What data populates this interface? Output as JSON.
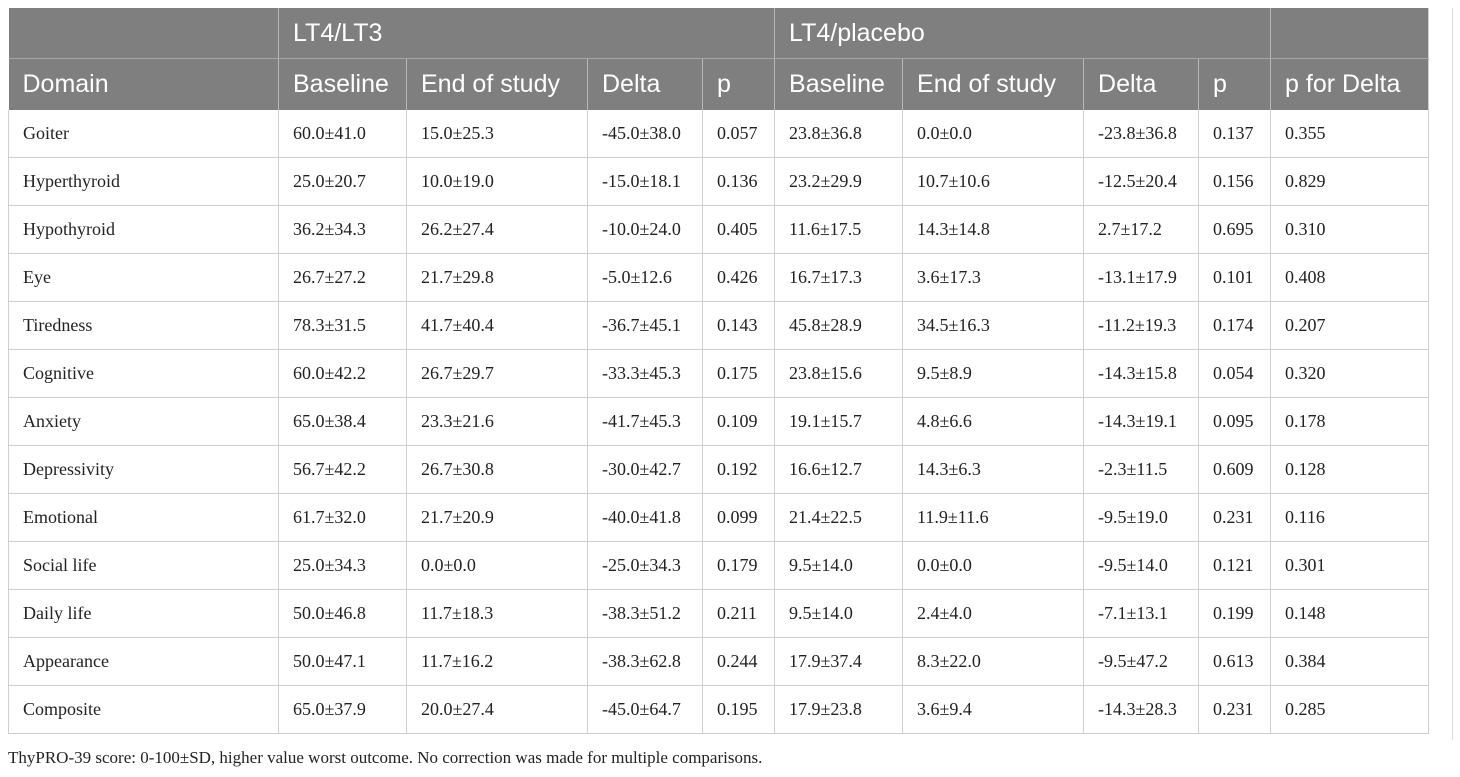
{
  "table": {
    "group_headers": [
      "",
      "LT4/LT3",
      "LT4/placebo",
      ""
    ],
    "columns": [
      "Domain",
      "Baseline",
      "End of study",
      "Delta",
      "p",
      "Baseline",
      "End of study",
      "Delta",
      "p",
      "p for Delta"
    ],
    "rows": [
      [
        "Goiter",
        "60.0±41.0",
        "15.0±25.3",
        "-45.0±38.0",
        "0.057",
        "23.8±36.8",
        "0.0±0.0",
        "-23.8±36.8",
        "0.137",
        "0.355"
      ],
      [
        "Hyperthyroid",
        "25.0±20.7",
        "10.0±19.0",
        "-15.0±18.1",
        "0.136",
        "23.2±29.9",
        "10.7±10.6",
        "-12.5±20.4",
        "0.156",
        "0.829"
      ],
      [
        "Hypothyroid",
        "36.2±34.3",
        "26.2±27.4",
        "-10.0±24.0",
        "0.405",
        "11.6±17.5",
        "14.3±14.8",
        "2.7±17.2",
        "0.695",
        "0.310"
      ],
      [
        "Eye",
        "26.7±27.2",
        "21.7±29.8",
        "-5.0±12.6",
        "0.426",
        "16.7±17.3",
        "3.6±17.3",
        "-13.1±17.9",
        "0.101",
        "0.408"
      ],
      [
        "Tiredness",
        "78.3±31.5",
        "41.7±40.4",
        "-36.7±45.1",
        "0.143",
        "45.8±28.9",
        "34.5±16.3",
        "-11.2±19.3",
        "0.174",
        "0.207"
      ],
      [
        "Cognitive",
        "60.0±42.2",
        "26.7±29.7",
        "-33.3±45.3",
        "0.175",
        "23.8±15.6",
        "9.5±8.9",
        "-14.3±15.8",
        "0.054",
        "0.320"
      ],
      [
        "Anxiety",
        "65.0±38.4",
        "23.3±21.6",
        "-41.7±45.3",
        "0.109",
        "19.1±15.7",
        "4.8±6.6",
        "-14.3±19.1",
        "0.095",
        "0.178"
      ],
      [
        "Depressivity",
        "56.7±42.2",
        "26.7±30.8",
        "-30.0±42.7",
        "0.192",
        "16.6±12.7",
        "14.3±6.3",
        "-2.3±11.5",
        "0.609",
        "0.128"
      ],
      [
        "Emotional",
        "61.7±32.0",
        "21.7±20.9",
        "-40.0±41.8",
        "0.099",
        "21.4±22.5",
        "11.9±11.6",
        "-9.5±19.0",
        "0.231",
        "0.116"
      ],
      [
        "Social life",
        "25.0±34.3",
        "0.0±0.0",
        "-25.0±34.3",
        "0.179",
        "9.5±14.0",
        "0.0±0.0",
        "-9.5±14.0",
        "0.121",
        "0.301"
      ],
      [
        "Daily life",
        "50.0±46.8",
        "11.7±18.3",
        "-38.3±51.2",
        "0.211",
        "9.5±14.0",
        "2.4±4.0",
        "-7.1±13.1",
        "0.199",
        "0.148"
      ],
      [
        "Appearance",
        "50.0±47.1",
        "11.7±16.2",
        "-38.3±62.8",
        "0.244",
        "17.9±37.4",
        "8.3±22.0",
        "-9.5±47.2",
        "0.613",
        "0.384"
      ],
      [
        "Composite",
        "65.0±37.9",
        "20.0±27.4",
        "-45.0±64.7",
        "0.195",
        "17.9±23.8",
        "3.6±9.4",
        "-14.3±28.3",
        "0.231",
        "0.285"
      ]
    ]
  },
  "footnote": "ThyPRO-39 score: 0-100±SD, higher value worst outcome. No correction was made for multiple comparisons.",
  "colors": {
    "header_bg": "#7f7f7f",
    "header_text": "#ffffff",
    "grid": "#cfcfcf"
  }
}
